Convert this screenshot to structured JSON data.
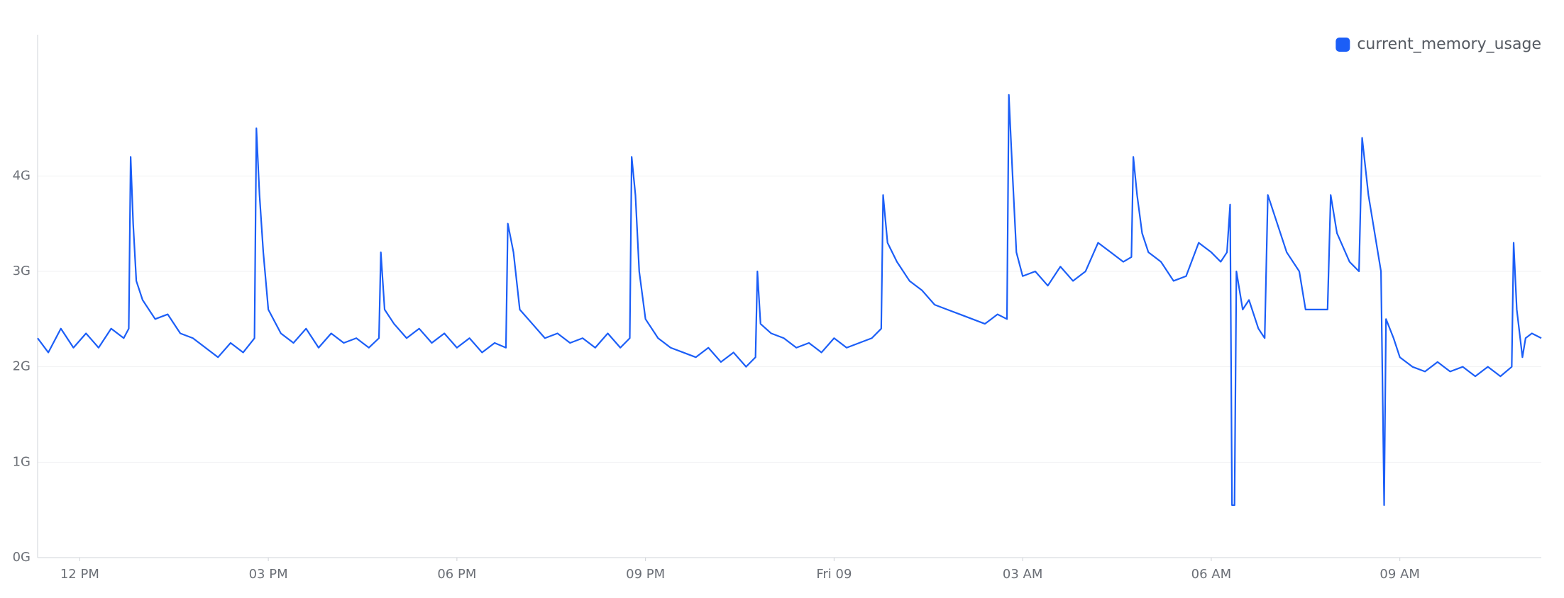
{
  "chart_data": {
    "type": "line",
    "series": [
      {
        "name": "current_memory_usage",
        "color": "#1b5ef7",
        "x": [
          11.33,
          11.5,
          11.7,
          11.9,
          12.1,
          12.3,
          12.5,
          12.7,
          12.78,
          12.81,
          12.85,
          12.9,
          13.0,
          13.2,
          13.4,
          13.6,
          13.8,
          14.0,
          14.2,
          14.4,
          14.6,
          14.78,
          14.81,
          14.86,
          14.92,
          15.0,
          15.2,
          15.4,
          15.6,
          15.8,
          16.0,
          16.2,
          16.4,
          16.6,
          16.76,
          16.79,
          16.85,
          17.0,
          17.2,
          17.4,
          17.6,
          17.8,
          18.0,
          18.2,
          18.4,
          18.6,
          18.78,
          18.81,
          18.9,
          19.0,
          19.2,
          19.4,
          19.6,
          19.8,
          20.0,
          20.2,
          20.4,
          20.6,
          20.75,
          20.78,
          20.84,
          20.9,
          21.0,
          21.2,
          21.4,
          21.6,
          21.8,
          22.0,
          22.2,
          22.4,
          22.6,
          22.75,
          22.78,
          22.83,
          23.0,
          23.2,
          23.4,
          23.6,
          23.8,
          24.0,
          24.2,
          24.4,
          24.6,
          24.75,
          24.78,
          24.85,
          25.0,
          25.2,
          25.4,
          25.6,
          25.8,
          26.0,
          26.2,
          26.4,
          26.6,
          26.75,
          26.78,
          26.84,
          26.9,
          27.0,
          27.2,
          27.4,
          27.6,
          27.8,
          28.0,
          28.2,
          28.4,
          28.6,
          28.73,
          28.76,
          28.82,
          28.9,
          29.0,
          29.2,
          29.4,
          29.6,
          29.8,
          30.0,
          30.15,
          30.25,
          30.3,
          30.33,
          30.37,
          30.4,
          30.5,
          30.6,
          30.75,
          30.85,
          30.9,
          31.0,
          31.2,
          31.4,
          31.5,
          31.7,
          31.85,
          31.9,
          32.0,
          32.2,
          32.35,
          32.4,
          32.5,
          32.6,
          32.7,
          32.75,
          32.78,
          32.9,
          33.0,
          33.2,
          33.4,
          33.6,
          33.8,
          34.0,
          34.2,
          34.4,
          34.6,
          34.78,
          34.81,
          34.86,
          34.95,
          35.0,
          35.1,
          35.25
        ],
        "values": [
          2.3,
          2.15,
          2.4,
          2.2,
          2.35,
          2.2,
          2.4,
          2.3,
          2.4,
          4.2,
          3.5,
          2.9,
          2.7,
          2.5,
          2.55,
          2.35,
          2.3,
          2.2,
          2.1,
          2.25,
          2.15,
          2.3,
          4.5,
          3.8,
          3.2,
          2.6,
          2.35,
          2.25,
          2.4,
          2.2,
          2.35,
          2.25,
          2.3,
          2.2,
          2.3,
          3.2,
          2.6,
          2.45,
          2.3,
          2.4,
          2.25,
          2.35,
          2.2,
          2.3,
          2.15,
          2.25,
          2.2,
          3.5,
          3.2,
          2.6,
          2.45,
          2.3,
          2.35,
          2.25,
          2.3,
          2.2,
          2.35,
          2.2,
          2.3,
          4.2,
          3.8,
          3.0,
          2.5,
          2.3,
          2.2,
          2.15,
          2.1,
          2.2,
          2.05,
          2.15,
          2.0,
          2.1,
          3.0,
          2.45,
          2.35,
          2.3,
          2.2,
          2.25,
          2.15,
          2.3,
          2.2,
          2.25,
          2.3,
          2.4,
          3.8,
          3.3,
          3.1,
          2.9,
          2.8,
          2.65,
          2.6,
          2.55,
          2.5,
          2.45,
          2.55,
          2.5,
          4.85,
          4.0,
          3.2,
          2.95,
          3.0,
          2.85,
          3.05,
          2.9,
          3.0,
          3.3,
          3.2,
          3.1,
          3.15,
          4.2,
          3.8,
          3.4,
          3.2,
          3.1,
          2.9,
          2.95,
          3.3,
          3.2,
          3.1,
          3.2,
          3.7,
          0.55,
          0.55,
          3.0,
          2.6,
          2.7,
          2.4,
          2.3,
          3.8,
          3.6,
          3.2,
          3.0,
          2.6,
          2.6,
          2.6,
          3.8,
          3.4,
          3.1,
          3.0,
          4.4,
          3.8,
          3.4,
          3.0,
          0.55,
          2.5,
          2.3,
          2.1,
          2.0,
          1.95,
          2.05,
          1.95,
          2.0,
          1.9,
          2.0,
          1.9,
          2.0,
          3.3,
          2.6,
          2.1,
          2.3,
          2.35,
          2.3
        ]
      }
    ],
    "xlim": [
      11.33,
      35.25
    ],
    "xticks": [
      {
        "value": 12,
        "label": "12 PM"
      },
      {
        "value": 15,
        "label": "03 PM"
      },
      {
        "value": 18,
        "label": "06 PM"
      },
      {
        "value": 21,
        "label": "09 PM"
      },
      {
        "value": 24,
        "label": "Fri 09"
      },
      {
        "value": 27,
        "label": "03 AM"
      },
      {
        "value": 30,
        "label": "06 AM"
      },
      {
        "value": 33,
        "label": "09 AM"
      }
    ],
    "ylim": [
      0,
      5.48
    ],
    "yticks": [
      {
        "value": 0,
        "label": "0G"
      },
      {
        "value": 1,
        "label": "1G"
      },
      {
        "value": 2,
        "label": "2G"
      },
      {
        "value": 3,
        "label": "3G"
      },
      {
        "value": 4,
        "label": "4G"
      }
    ],
    "grid": true,
    "legend": "top-right"
  }
}
